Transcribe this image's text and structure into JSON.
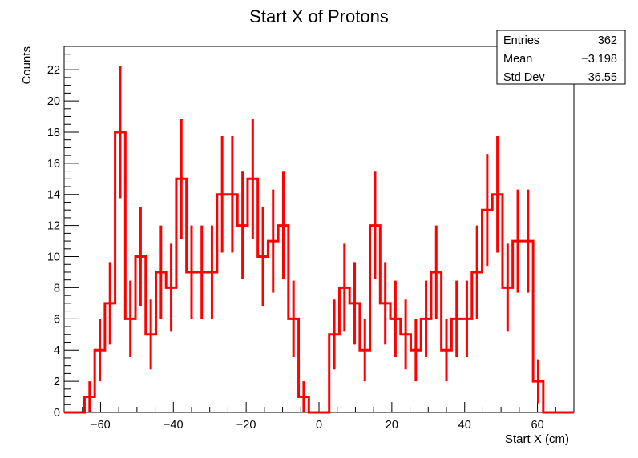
{
  "chart_data": {
    "type": "bar",
    "title": "Start X of Protons",
    "xlabel": "Start X (cm)",
    "ylabel": "Counts",
    "xlim": [
      -70,
      70
    ],
    "ylim": [
      0,
      23.5
    ],
    "grid": false,
    "legend": "none",
    "line_color": "#ff0000",
    "bin_width": 2.8,
    "bin_starts": [
      -70.0,
      -67.2,
      -64.4,
      -61.6,
      -58.8,
      -56.0,
      -53.2,
      -50.4,
      -47.6,
      -44.8,
      -42.0,
      -39.2,
      -36.4,
      -33.6,
      -30.8,
      -28.0,
      -25.2,
      -22.4,
      -19.6,
      -16.8,
      -14.0,
      -11.2,
      -8.4,
      -5.6,
      -2.8,
      0.0,
      2.8,
      5.6,
      8.4,
      11.2,
      14.0,
      16.8,
      19.6,
      22.4,
      25.2,
      28.0,
      30.8,
      33.6,
      36.4,
      39.2,
      42.0,
      44.8,
      47.6,
      50.4,
      53.2,
      56.0,
      58.8,
      61.6,
      64.4,
      67.2
    ],
    "values": [
      0,
      0,
      1,
      4,
      7,
      18,
      6,
      10,
      5,
      9,
      8,
      15,
      9,
      9,
      9,
      14,
      14,
      12,
      15,
      10,
      11,
      12,
      6,
      1,
      0,
      0,
      5,
      8,
      7,
      4,
      12,
      7,
      6,
      5,
      4,
      6,
      9,
      4,
      6,
      6,
      9,
      13,
      14,
      8,
      11,
      11,
      2,
      0,
      0,
      0
    ],
    "xticks": [
      "−60",
      "−40",
      "−20",
      "0",
      "20",
      "40",
      "60"
    ],
    "xtick_values": [
      -60,
      -40,
      -20,
      0,
      20,
      40,
      60
    ],
    "yticks": [
      "0",
      "2",
      "4",
      "6",
      "8",
      "10",
      "12",
      "14",
      "16",
      "18",
      "20",
      "22"
    ],
    "ytick_values": [
      0,
      2,
      4,
      6,
      8,
      10,
      12,
      14,
      16,
      18,
      20,
      22
    ]
  },
  "stats": {
    "rows": [
      {
        "label": "Entries",
        "value": "362"
      },
      {
        "label": "Mean",
        "value": "−3.198"
      },
      {
        "label": "Std Dev",
        "value": "36.55"
      }
    ]
  }
}
